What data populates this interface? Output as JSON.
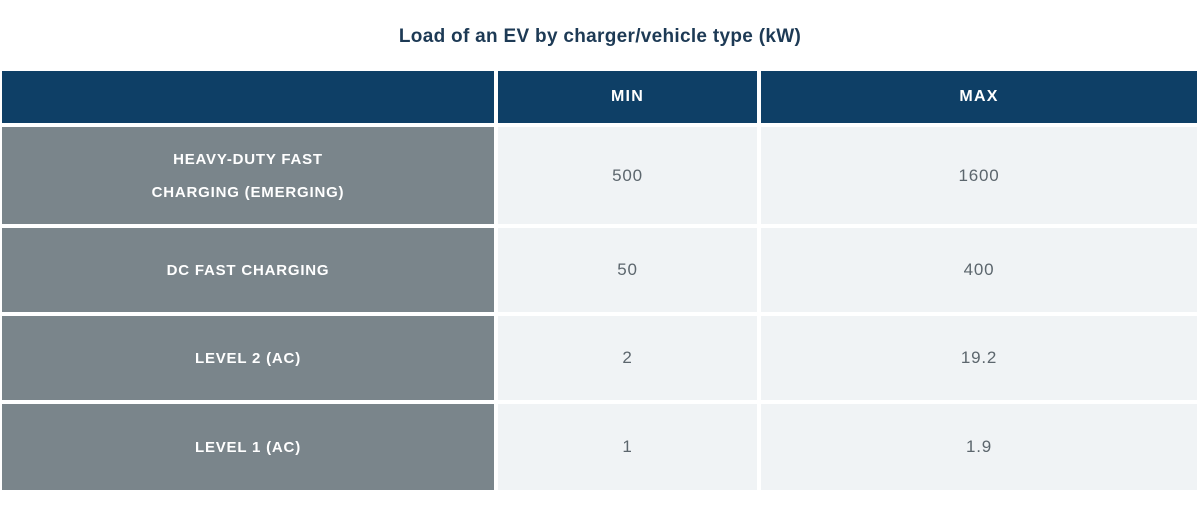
{
  "title": "Load of an EV by charger/vehicle type (kW)",
  "table": {
    "header": {
      "label_col": "",
      "min": "MIN",
      "max": "MAX"
    },
    "rows": [
      {
        "label_lines": [
          "HEAVY-DUTY FAST",
          "CHARGING (EMERGING)"
        ],
        "min": "500",
        "max": "1600"
      },
      {
        "label_lines": [
          "DC FAST CHARGING"
        ],
        "min": "50",
        "max": "400"
      },
      {
        "label_lines": [
          "LEVEL 2 (AC)"
        ],
        "min": "2",
        "max": "19.2"
      },
      {
        "label_lines": [
          "LEVEL 1 (AC)"
        ],
        "min": "1",
        "max": "1.9"
      }
    ]
  },
  "colors": {
    "header_bg": "#0e3f66",
    "row_label_bg": "#7a858b",
    "value_bg": "#f0f3f5",
    "value_text": "#5c666d",
    "title_text": "#1d3a55",
    "gutter": "#ffffff"
  },
  "chart_data": {
    "type": "table",
    "title": "Load of an EV by charger/vehicle type (kW)",
    "unit": "kW",
    "categories": [
      "HEAVY-DUTY FAST CHARGING (EMERGING)",
      "DC FAST CHARGING",
      "LEVEL 2 (AC)",
      "LEVEL 1 (AC)"
    ],
    "series": [
      {
        "name": "MIN",
        "values": [
          500,
          50,
          2,
          1
        ]
      },
      {
        "name": "MAX",
        "values": [
          1600,
          400,
          19.2,
          1.9
        ]
      }
    ],
    "legend_position": "none",
    "grid": false
  }
}
